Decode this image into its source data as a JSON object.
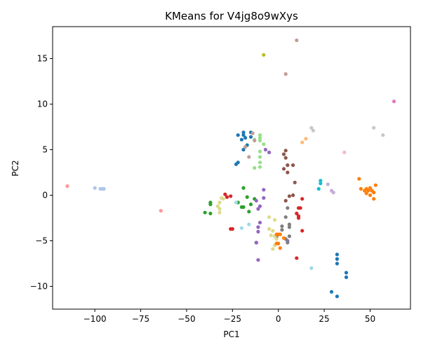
{
  "chart_data": {
    "type": "scatter",
    "title": "KMeans for V4jg8o9wXys",
    "xlabel": "PC1",
    "ylabel": "PC2",
    "xlim": [
      -123,
      72
    ],
    "ylim": [
      -12.5,
      18.5
    ],
    "xticks": [
      -100,
      -75,
      -50,
      -25,
      0,
      25,
      50
    ],
    "yticks": [
      -10,
      -5,
      0,
      5,
      10,
      15
    ],
    "grid": false,
    "legend": "none",
    "series": [
      {
        "color": "#1f77b4",
        "points": [
          [
            -22,
            6.6
          ],
          [
            -19,
            6.6
          ],
          [
            -19,
            6.9
          ],
          [
            -15,
            6.9
          ],
          [
            -20,
            6.1
          ],
          [
            -18,
            6.3
          ],
          [
            -15,
            6.4
          ],
          [
            -19,
            5.0
          ],
          [
            -17,
            5.5
          ],
          [
            -23,
            3.4
          ],
          [
            -22,
            3.6
          ],
          [
            32,
            -6.5
          ],
          [
            32,
            -7.0
          ],
          [
            32,
            -7.5
          ],
          [
            37,
            -8.5
          ],
          [
            37,
            -9.0
          ],
          [
            29,
            -10.6
          ],
          [
            32,
            -11.1
          ]
        ]
      },
      {
        "color": "#aec7e8",
        "points": [
          [
            -100,
            0.8
          ],
          [
            -97,
            0.7
          ],
          [
            -96,
            0.7
          ],
          [
            -95,
            0.7
          ]
        ]
      },
      {
        "color": "#ff7f0e",
        "points": [
          [
            44,
            1.8
          ],
          [
            45,
            0.7
          ],
          [
            47,
            0.5
          ],
          [
            48,
            0.7
          ],
          [
            48,
            0.2
          ],
          [
            49,
            0.5
          ],
          [
            50,
            0.8
          ],
          [
            50,
            0.0
          ],
          [
            51,
            0.5
          ],
          [
            52,
            0.3
          ],
          [
            53,
            1.1
          ],
          [
            52,
            -0.4
          ],
          [
            51,
            0.5
          ]
        ]
      },
      {
        "color": "#ffbb78",
        "points": [
          [
            13,
            5.8
          ],
          [
            15,
            6.2
          ]
        ]
      },
      {
        "color": "#2ca02c",
        "points": [
          [
            -19,
            0.8
          ],
          [
            -17,
            -0.2
          ],
          [
            -22,
            -0.8
          ],
          [
            -15,
            -1.0
          ],
          [
            -19,
            -1.3
          ],
          [
            -20,
            -1.3
          ],
          [
            -16,
            -1.8
          ],
          [
            -37,
            -0.8
          ],
          [
            -37,
            -1.0
          ],
          [
            -40,
            -1.9
          ],
          [
            -37,
            -2.0
          ],
          [
            -13,
            -0.4
          ]
        ]
      },
      {
        "color": "#98df8a",
        "points": [
          [
            -10,
            6.6
          ],
          [
            -10,
            6.3
          ],
          [
            -13,
            6.1
          ],
          [
            -10,
            6.0
          ],
          [
            -8,
            5.6
          ],
          [
            -10,
            4.8
          ],
          [
            -10,
            4.2
          ],
          [
            -10,
            3.6
          ],
          [
            -10,
            3.1
          ],
          [
            -13,
            3.0
          ]
        ]
      },
      {
        "color": "#d62728",
        "points": [
          [
            -29,
            0.1
          ],
          [
            -28,
            -0.2
          ],
          [
            -26,
            -0.1
          ],
          [
            -25,
            -3.7
          ],
          [
            -26,
            -3.7
          ],
          [
            11,
            -1.4
          ],
          [
            12,
            -1.4
          ],
          [
            13,
            -0.4
          ],
          [
            10,
            -2.0
          ],
          [
            11,
            -2.3
          ],
          [
            11,
            -2.5
          ],
          [
            13,
            -3.9
          ],
          [
            10,
            -6.9
          ]
        ]
      },
      {
        "color": "#ff9896",
        "points": [
          [
            -115,
            1.0
          ],
          [
            -64,
            -1.7
          ]
        ]
      },
      {
        "color": "#9467bd",
        "points": [
          [
            -7,
            5.0
          ],
          [
            -5,
            4.7
          ],
          [
            -8,
            -0.3
          ],
          [
            -12,
            -0.6
          ],
          [
            -10,
            -1.2
          ],
          [
            -11,
            -1.5
          ],
          [
            -10,
            -3.0
          ],
          [
            -11,
            -3.5
          ],
          [
            -11,
            -4.0
          ],
          [
            -12,
            -5.2
          ],
          [
            -12,
            -5.2
          ],
          [
            -11,
            -7.1
          ],
          [
            -8,
            0.6
          ],
          [
            5,
            -5.0
          ]
        ]
      },
      {
        "color": "#c5b0d5",
        "points": [
          [
            29,
            0.5
          ],
          [
            30,
            0.3
          ],
          [
            27,
            1.2
          ]
        ]
      },
      {
        "color": "#8c564b",
        "points": [
          [
            4,
            4.9
          ],
          [
            3,
            4.5
          ],
          [
            4,
            4.1
          ],
          [
            5,
            3.3
          ],
          [
            8,
            3.3
          ],
          [
            3,
            2.9
          ],
          [
            5,
            2.5
          ],
          [
            9,
            1.4
          ],
          [
            6,
            -0.1
          ],
          [
            8,
            0.0
          ],
          [
            4,
            -0.6
          ]
        ]
      },
      {
        "color": "#c49c94",
        "points": [
          [
            -13,
            6.0
          ],
          [
            -18,
            5.3
          ],
          [
            -14,
            6.8
          ],
          [
            -16,
            4.2
          ],
          [
            4,
            13.3
          ],
          [
            10,
            17.0
          ]
        ]
      },
      {
        "color": "#e377c2",
        "points": [
          [
            63,
            10.3
          ]
        ]
      },
      {
        "color": "#f7b6d2",
        "points": [
          [
            36,
            4.7
          ]
        ]
      },
      {
        "color": "#7f7f7f",
        "points": [
          [
            5,
            -1.4
          ],
          [
            4,
            -2.4
          ],
          [
            6,
            -3.2
          ],
          [
            6,
            -3.5
          ],
          [
            6,
            -4.5
          ],
          [
            2,
            -3.4
          ],
          [
            2,
            -3.8
          ],
          [
            4,
            -4.8
          ],
          [
            5,
            -5.2
          ],
          [
            -1,
            -4.6
          ]
        ]
      },
      {
        "color": "#c7c7c7",
        "points": [
          [
            18,
            7.4
          ],
          [
            19,
            7.1
          ],
          [
            52,
            7.4
          ],
          [
            57,
            6.6
          ]
        ]
      },
      {
        "color": "#bcbd22",
        "points": [
          [
            -8,
            15.4
          ]
        ]
      },
      {
        "color": "#dbdb8d",
        "points": [
          [
            -32,
            -0.8
          ],
          [
            -31,
            -0.3
          ],
          [
            -30,
            -0.4
          ],
          [
            -33,
            -1.2
          ],
          [
            -32,
            -1.5
          ],
          [
            -32,
            -1.9
          ],
          [
            -5,
            -2.4
          ],
          [
            -2,
            -2.7
          ],
          [
            -5,
            -3.7
          ],
          [
            -3,
            -3.9
          ],
          [
            -4,
            -4.4
          ],
          [
            -2,
            -4.5
          ],
          [
            -1,
            -4.8
          ],
          [
            -2,
            -5.5
          ],
          [
            -3,
            -5.9
          ]
        ]
      },
      {
        "color": "#17becf",
        "points": [
          [
            23,
            1.6
          ],
          [
            23,
            1.3
          ],
          [
            22,
            0.7
          ]
        ]
      },
      {
        "color": "#9edae5",
        "points": [
          [
            -23,
            -0.8
          ],
          [
            -20,
            -3.6
          ],
          [
            -16,
            -3.2
          ],
          [
            18,
            -8.0
          ]
        ]
      },
      {
        "color": "#ff7f0e",
        "points": [
          [
            -1,
            -4.3
          ],
          [
            0,
            -4.3
          ],
          [
            1,
            -4.3
          ],
          [
            -1,
            -5.3
          ],
          [
            3,
            -4.7
          ],
          [
            1,
            -5.8
          ],
          [
            0,
            -5.3
          ]
        ]
      }
    ]
  }
}
